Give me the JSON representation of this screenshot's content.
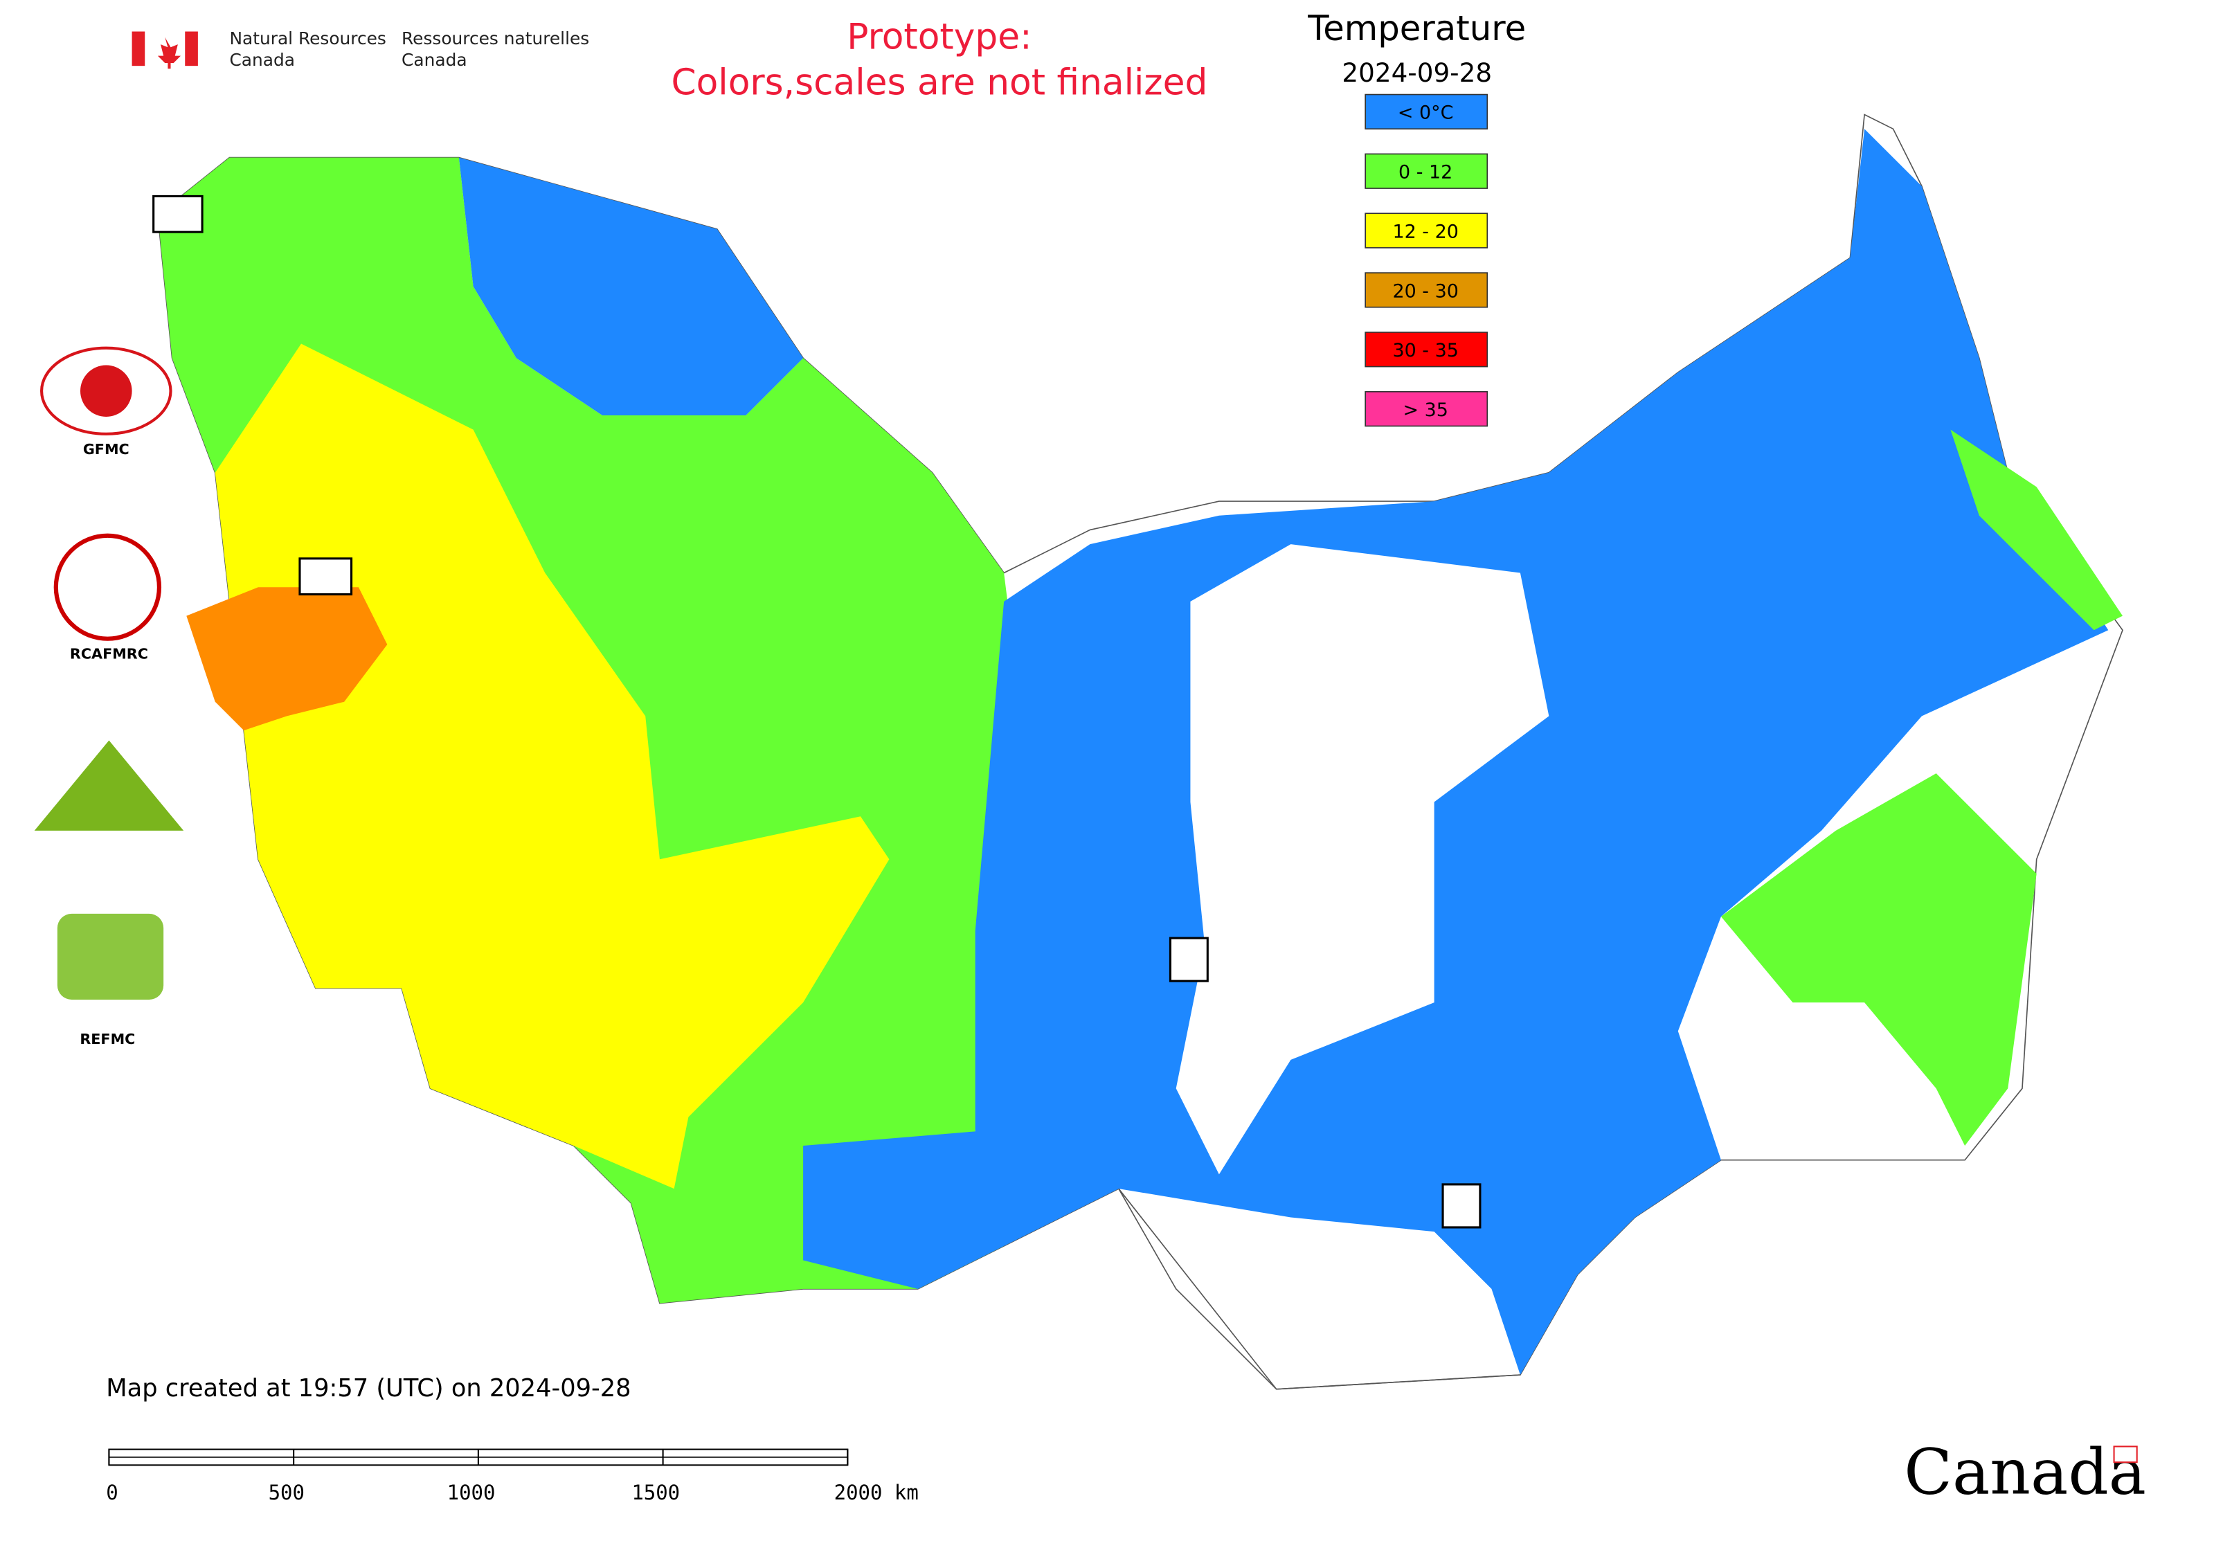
{
  "header": {
    "department_en": [
      "Natural Resources",
      "Canada"
    ],
    "department_fr": [
      "Ressources naturelles",
      "Canada"
    ]
  },
  "notice": [
    "Prototype:",
    "Colors,scales are not finalized"
  ],
  "legend": {
    "title": "Temperature",
    "date": "2024-09-28",
    "items": [
      {
        "label": "< 0°C",
        "color": "#1e88ff"
      },
      {
        "label": "0 - 12",
        "color": "#66ff33"
      },
      {
        "label": "12 - 20",
        "color": "#ffff00"
      },
      {
        "label": "20 - 30",
        "color": "#e09400"
      },
      {
        "label": "30 - 35",
        "color": "#ff0000"
      },
      {
        "label": "> 35",
        "color": "#ff3399"
      }
    ]
  },
  "logos": [
    "GFMC",
    "RCAFMRC",
    "REFMC"
  ],
  "footer": {
    "created": "Map created at 19:57 (UTC) on 2024-09-28",
    "wordmark": "Canada"
  },
  "scale_bar": {
    "ticks": [
      0,
      500,
      1000,
      1500,
      {
        "value": 2000,
        "label": "2000 km"
      }
    ]
  }
}
